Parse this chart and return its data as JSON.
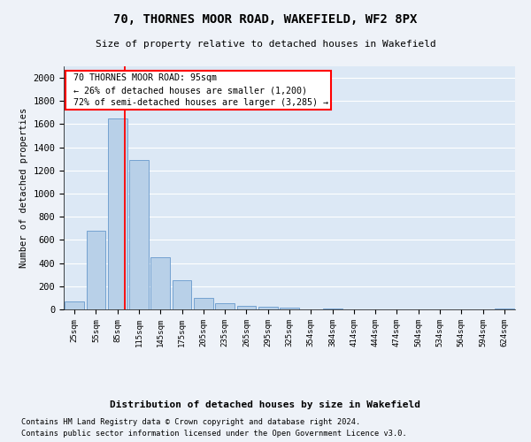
{
  "title": "70, THORNES MOOR ROAD, WAKEFIELD, WF2 8PX",
  "subtitle": "Size of property relative to detached houses in Wakefield",
  "xlabel": "Distribution of detached houses by size in Wakefield",
  "ylabel": "Number of detached properties",
  "footnote1": "Contains HM Land Registry data © Crown copyright and database right 2024.",
  "footnote2": "Contains public sector information licensed under the Open Government Licence v3.0.",
  "bar_heights": [
    65,
    680,
    1650,
    1290,
    450,
    250,
    100,
    50,
    30,
    20,
    15,
    0,
    10,
    0,
    0,
    0,
    0,
    0,
    0,
    0,
    10
  ],
  "bar_labels": [
    "25sqm",
    "55sqm",
    "85sqm",
    "115sqm",
    "145sqm",
    "175sqm",
    "205sqm",
    "235sqm",
    "265sqm",
    "295sqm",
    "325sqm",
    "354sqm",
    "384sqm",
    "414sqm",
    "444sqm",
    "474sqm",
    "504sqm",
    "534sqm",
    "564sqm",
    "594sqm",
    "624sqm"
  ],
  "bar_color": "#b8d0e8",
  "bar_edge_color": "#6699cc",
  "property_label": "70 THORNES MOOR ROAD: 95sqm",
  "pct_smaller": 26,
  "n_smaller": 1200,
  "pct_larger_semi": 72,
  "n_larger_semi": 3285,
  "vline_x_index": 2.33,
  "ylim": [
    0,
    2100
  ],
  "yticks": [
    0,
    200,
    400,
    600,
    800,
    1000,
    1200,
    1400,
    1600,
    1800,
    2000
  ],
  "fig_bg": "#eef2f8",
  "ax_bg": "#dce8f5",
  "grid_color": "#ffffff"
}
